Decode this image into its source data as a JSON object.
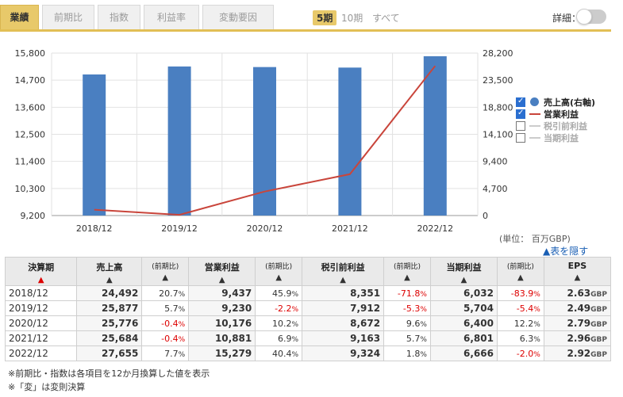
{
  "tabs": [
    {
      "label": "業績",
      "active": true
    },
    {
      "label": "前期比",
      "active": false
    },
    {
      "label": "指数",
      "active": false
    },
    {
      "label": "利益率",
      "active": false
    },
    {
      "label": "変動要因",
      "active": false
    }
  ],
  "periods": [
    {
      "label": "5期",
      "active": true
    },
    {
      "label": "10期",
      "active": false
    },
    {
      "label": "すべて",
      "active": false
    }
  ],
  "detail_label": "詳細：",
  "chart_data": {
    "type": "bar",
    "categories": [
      "2018/12",
      "2019/12",
      "2020/12",
      "2021/12",
      "2022/12"
    ],
    "series": [
      {
        "name": "売上高(右軸)",
        "type": "bar",
        "axis": "right",
        "values": [
          24492,
          25877,
          25776,
          25684,
          27655
        ],
        "color": "#4a7fc1"
      },
      {
        "name": "営業利益",
        "type": "line",
        "axis": "left",
        "values": [
          9437,
          9230,
          10176,
          10881,
          15279
        ],
        "color": "#c9453b"
      }
    ],
    "left_axis": {
      "ticks": [
        "15,800",
        "14,700",
        "13,600",
        "12,500",
        "11,400",
        "10,300",
        "9,200"
      ],
      "min": 9200,
      "max": 15800
    },
    "right_axis": {
      "ticks": [
        "28,200",
        "23,500",
        "18,800",
        "14,100",
        "9,400",
        "4,700",
        "0"
      ],
      "min": 0,
      "max": 28200
    },
    "grid": true,
    "legend": "right"
  },
  "legend": [
    {
      "label": "売上高(右軸)",
      "checked": true,
      "symbol": "dot"
    },
    {
      "label": "営業利益",
      "checked": true,
      "symbol": "line"
    },
    {
      "label": "税引前利益",
      "checked": false,
      "symbol": "gline"
    },
    {
      "label": "当期利益",
      "checked": false,
      "symbol": "gline"
    }
  ],
  "units": "(単位： 百万GBP)",
  "hide_table": "▲表を隠す",
  "table": {
    "headers": [
      {
        "label": "決算期",
        "arrow": "▲",
        "red": true,
        "small": false
      },
      {
        "label": "売上高",
        "arrow": "▲",
        "red": false,
        "small": false
      },
      {
        "label": "(前期比)",
        "arrow": "▲",
        "red": false,
        "small": true
      },
      {
        "label": "営業利益",
        "arrow": "▲",
        "red": false,
        "small": false
      },
      {
        "label": "(前期比)",
        "arrow": "▲",
        "red": false,
        "small": true
      },
      {
        "label": "税引前利益",
        "arrow": "▲",
        "red": false,
        "small": false
      },
      {
        "label": "(前期比)",
        "arrow": "▲",
        "red": false,
        "small": true
      },
      {
        "label": "当期利益",
        "arrow": "▲",
        "red": false,
        "small": false
      },
      {
        "label": "(前期比)",
        "arrow": "▲",
        "red": false,
        "small": true
      },
      {
        "label": "EPS",
        "arrow": "▲",
        "red": false,
        "small": false
      }
    ],
    "rows": [
      {
        "period": "2018/12",
        "sales": "24,492",
        "sales_chg": "20.7",
        "op": "9,437",
        "op_chg": "45.9",
        "pretax": "8,351",
        "pretax_chg": "-71.8",
        "net": "6,032",
        "net_chg": "-83.9",
        "eps": "2.63"
      },
      {
        "period": "2019/12",
        "sales": "25,877",
        "sales_chg": "5.7",
        "op": "9,230",
        "op_chg": "-2.2",
        "pretax": "7,912",
        "pretax_chg": "-5.3",
        "net": "5,704",
        "net_chg": "-5.4",
        "eps": "2.49"
      },
      {
        "period": "2020/12",
        "sales": "25,776",
        "sales_chg": "-0.4",
        "op": "10,176",
        "op_chg": "10.2",
        "pretax": "8,672",
        "pretax_chg": "9.6",
        "net": "6,400",
        "net_chg": "12.2",
        "eps": "2.79"
      },
      {
        "period": "2021/12",
        "sales": "25,684",
        "sales_chg": "-0.4",
        "op": "10,881",
        "op_chg": "6.9",
        "pretax": "9,163",
        "pretax_chg": "5.7",
        "net": "6,801",
        "net_chg": "6.3",
        "eps": "2.96"
      },
      {
        "period": "2022/12",
        "sales": "27,655",
        "sales_chg": "7.7",
        "op": "15,279",
        "op_chg": "40.4",
        "pretax": "9,324",
        "pretax_chg": "1.8",
        "net": "6,666",
        "net_chg": "-2.0",
        "eps": "2.92"
      }
    ],
    "pct_unit": "%",
    "eps_unit": "GBP"
  },
  "notes": [
    "※前期比・指数は各項目を12か月換算した値を表示",
    "※「変」は変則決算"
  ]
}
